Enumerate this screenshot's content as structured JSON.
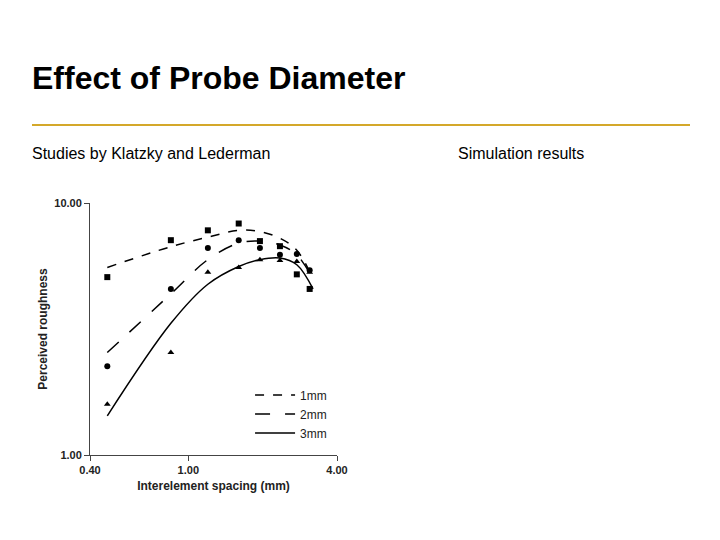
{
  "slide": {
    "title": "Effect of Probe Diameter",
    "left_caption": "Studies by Klatzky and Lederman",
    "right_caption": "Simulation results"
  },
  "chart_data": {
    "type": "scatter",
    "log": true,
    "grid": false,
    "legend": "lower right",
    "x_label": "Interelement spacing (mm)",
    "y_label": "Perceived roughness",
    "xlim": [
      0.4,
      4
    ],
    "xticks": [
      {
        "value": 0.4,
        "label": "0.40"
      },
      {
        "value": 1,
        "label": "1.00"
      },
      {
        "value": 4,
        "label": "4.00"
      }
    ],
    "ylim": [
      1,
      10
    ],
    "yticks": [
      {
        "value": 1,
        "label": "1.00"
      },
      {
        "value": 10,
        "label": "10.00"
      }
    ],
    "series": [
      {
        "name": "1mm",
        "color": "#000000",
        "marker": "square",
        "line_style": "dashed",
        "x": [
          0.47,
          0.85,
          1.2,
          1.6,
          1.95,
          2.35,
          2.75,
          3.1
        ],
        "values": [
          5.08,
          7.12,
          7.79,
          8.29,
          7.06,
          6.74,
          5.21,
          4.56
        ],
        "fit_x": [
          0.47,
          0.85,
          1.2,
          1.6,
          1.95,
          2.35,
          2.75,
          3.2
        ],
        "fit_values": [
          5.55,
          6.71,
          7.32,
          7.79,
          7.7,
          7.25,
          6.5,
          4.98
        ]
      },
      {
        "name": "2mm",
        "color": "#000000",
        "marker": "circle",
        "line_style": "long_dashed",
        "x": [
          0.47,
          0.85,
          1.2,
          1.6,
          1.95,
          2.35,
          2.75,
          3.1
        ],
        "values": [
          2.25,
          4.56,
          6.63,
          7.12,
          6.63,
          6.23,
          6.28,
          5.41
        ],
        "fit_x": [
          0.47,
          0.85,
          1.2,
          1.6,
          1.95,
          2.35,
          2.75,
          3.2
        ],
        "fit_values": [
          2.55,
          4.36,
          5.96,
          6.93,
          7.06,
          6.81,
          6.23,
          4.98
        ]
      },
      {
        "name": "3mm",
        "color": "#000000",
        "marker": "triangle",
        "line_style": "solid",
        "x": [
          0.47,
          0.85,
          1.2,
          1.6,
          1.95,
          2.35,
          2.75,
          3.1
        ],
        "values": [
          1.59,
          2.55,
          5.31,
          5.55,
          5.96,
          5.91,
          5.86,
          5.31
        ],
        "fit_x": [
          0.47,
          0.85,
          1.2,
          1.6,
          1.95,
          2.35,
          2.75,
          3.2
        ],
        "fit_values": [
          1.43,
          3.33,
          4.76,
          5.6,
          5.96,
          6.05,
          5.69,
          4.56
        ]
      }
    ]
  }
}
